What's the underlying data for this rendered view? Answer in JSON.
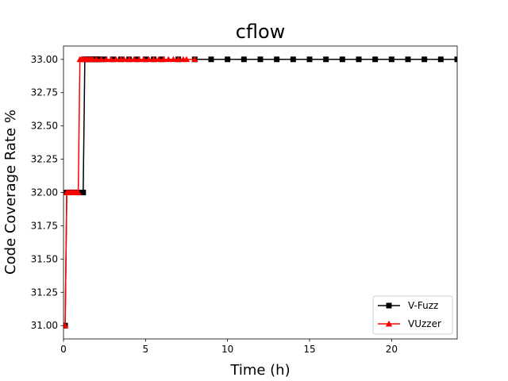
{
  "chart_data": {
    "type": "line",
    "title": "cflow",
    "xlabel": "Time (h)",
    "ylabel": "Code Coverage Rate %",
    "xlim": [
      0,
      24
    ],
    "ylim": [
      30.9,
      33.1
    ],
    "xticks": [
      0,
      5,
      10,
      15,
      20
    ],
    "xtick_labels": [
      "0",
      "5",
      "10",
      "15",
      "20"
    ],
    "yticks": [
      31.0,
      31.25,
      31.5,
      31.75,
      32.0,
      32.25,
      32.5,
      32.75,
      33.0
    ],
    "ytick_labels": [
      "31.00",
      "31.25",
      "31.50",
      "31.75",
      "32.00",
      "32.25",
      "32.50",
      "32.75",
      "33.00"
    ],
    "grid": false,
    "legend_position": "lower-right",
    "series": [
      {
        "name": "V-Fuzz",
        "color": "#000000",
        "marker": "square",
        "x": [
          0.0,
          0.1,
          0.2,
          0.3,
          0.4,
          0.5,
          0.6,
          0.7,
          0.8,
          0.9,
          1.0,
          1.1,
          1.2,
          1.3,
          1.4,
          1.5,
          1.6,
          1.7,
          1.8,
          1.9,
          2.0,
          2.1,
          2.2,
          2.5,
          3.0,
          3.5,
          4.0,
          4.5,
          5.0,
          5.5,
          6.0,
          7.0,
          8.0,
          9.0,
          10.0,
          11.0,
          12.0,
          13.0,
          14.0,
          15.0,
          16.0,
          17.0,
          18.0,
          19.0,
          20.0,
          21.0,
          22.0,
          23.0,
          24.0
        ],
        "y": [
          31.0,
          31.0,
          32.0,
          32.0,
          32.0,
          32.0,
          32.0,
          32.0,
          32.0,
          32.0,
          32.0,
          32.0,
          32.0,
          33.0,
          33.0,
          33.0,
          33.0,
          33.0,
          33.0,
          33.0,
          33.0,
          33.0,
          33.0,
          33.0,
          33.0,
          33.0,
          33.0,
          33.0,
          33.0,
          33.0,
          33.0,
          33.0,
          33.0,
          33.0,
          33.0,
          33.0,
          33.0,
          33.0,
          33.0,
          33.0,
          33.0,
          33.0,
          33.0,
          33.0,
          33.0,
          33.0,
          33.0,
          33.0,
          33.0
        ]
      },
      {
        "name": "VUzzer",
        "color": "#ff0000",
        "marker": "triangle",
        "x": [
          0.0,
          0.1,
          0.2,
          0.3,
          0.4,
          0.5,
          0.6,
          0.7,
          0.8,
          0.9,
          1.0,
          1.1,
          1.2,
          1.3,
          1.4,
          1.5,
          1.6,
          1.7,
          1.8,
          2.0,
          2.3,
          2.6,
          2.9,
          3.2,
          3.5,
          3.7,
          4.0,
          4.3,
          4.6,
          4.9,
          5.2,
          5.5,
          5.8,
          6.1,
          6.4,
          6.7,
          7.0,
          7.3,
          7.5,
          8.0
        ],
        "y": [
          31.0,
          31.0,
          32.0,
          32.0,
          32.0,
          32.0,
          32.0,
          32.0,
          32.0,
          32.0,
          33.0,
          33.0,
          33.0,
          33.0,
          33.0,
          33.0,
          33.0,
          33.0,
          33.0,
          33.0,
          33.0,
          33.0,
          33.0,
          33.0,
          33.0,
          33.0,
          33.0,
          33.0,
          33.0,
          33.0,
          33.0,
          33.0,
          33.0,
          33.0,
          33.0,
          33.0,
          33.0,
          33.0,
          33.0,
          33.0
        ]
      }
    ]
  }
}
